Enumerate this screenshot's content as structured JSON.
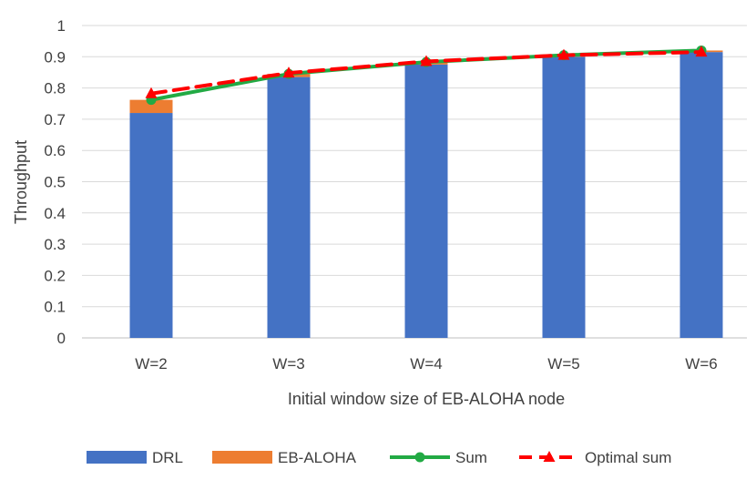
{
  "chart_data": {
    "type": "bar",
    "stacked": true,
    "title": "",
    "xlabel": "Initial window size of EB-ALOHA  node",
    "ylabel": "Throughput",
    "categories": [
      "W=2",
      "W=3",
      "W=4",
      "W=5",
      "W=6"
    ],
    "ylim": [
      0,
      1
    ],
    "yticks": [
      "0",
      "0.1",
      "0.2",
      "0.3",
      "0.4",
      "0.5",
      "0.6",
      "0.7",
      "0.8",
      "0.9",
      "1"
    ],
    "grid": true,
    "legend_position": "bottom",
    "series": [
      {
        "name": "DRL",
        "type": "bar",
        "color": "#4472C4",
        "values": [
          0.72,
          0.835,
          0.875,
          0.9,
          0.915
        ]
      },
      {
        "name": "EB-ALOHA",
        "type": "bar",
        "color": "#ED7D31",
        "values": [
          0.042,
          0.01,
          0.008,
          0.005,
          0.005
        ]
      },
      {
        "name": "Sum",
        "type": "line",
        "color": "#22AA44",
        "marker": "circle",
        "values": [
          0.762,
          0.845,
          0.883,
          0.905,
          0.92
        ]
      },
      {
        "name": "Optimal sum",
        "type": "line",
        "color": "#FF0000",
        "marker": "triangle",
        "dashed": true,
        "values": [
          0.782,
          0.848,
          0.885,
          0.905,
          0.915
        ]
      }
    ]
  }
}
